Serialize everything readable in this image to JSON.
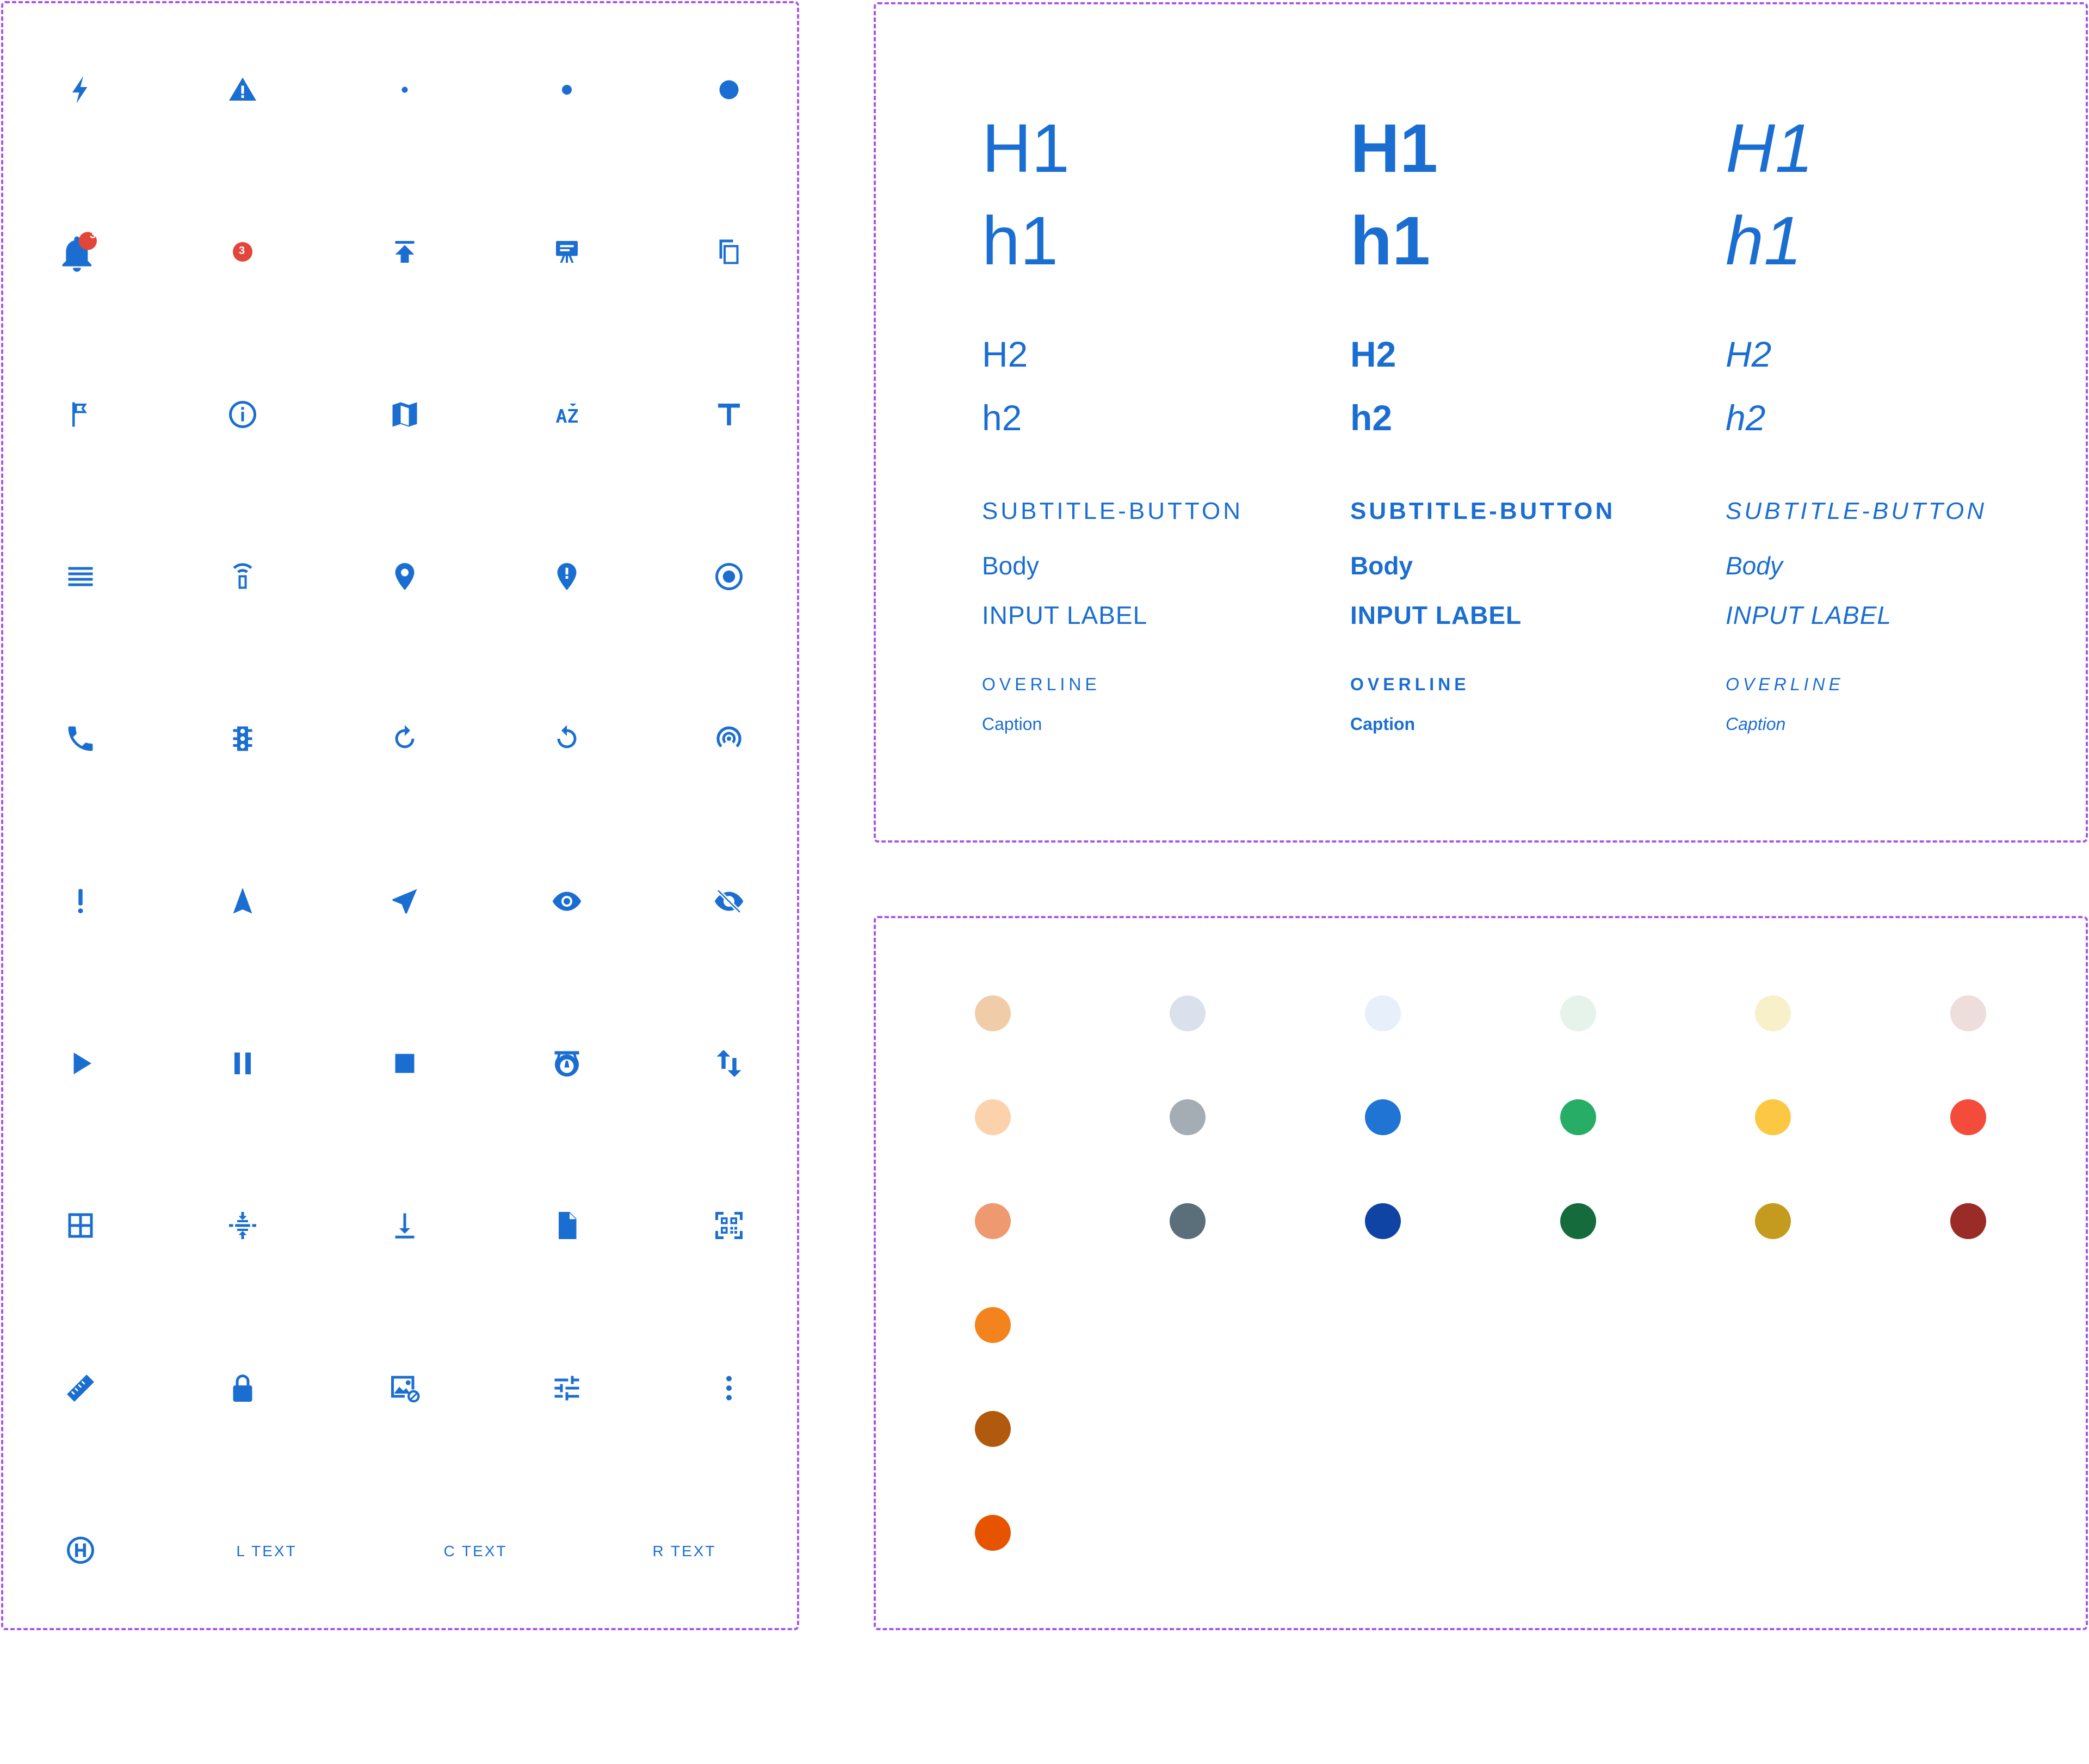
{
  "icons": [
    [
      "bolt",
      "warning",
      "dot-small",
      "dot-medium",
      "dot-large"
    ],
    [
      "bell-badge",
      "badge",
      "upload",
      "presentation",
      "copy"
    ],
    [
      "flag",
      "info",
      "map",
      "sort-az",
      "text"
    ],
    [
      "lines",
      "wifi-tower",
      "place",
      "place-alert",
      "radio-on"
    ],
    [
      "phone",
      "traffic",
      "rotate-cw",
      "rotate-ccw",
      "wifi-tethering"
    ],
    [
      "exclamation",
      "navigation",
      "near-me",
      "eye",
      "eye-off"
    ],
    [
      "play",
      "pause",
      "stop",
      "scale",
      "swap-vert"
    ],
    [
      "grid",
      "vertical-align-center",
      "vertical-align-bottom",
      "file",
      "qr-scan"
    ],
    [
      "ruler",
      "lock",
      "hide-image",
      "tune",
      "more-vert"
    ],
    [
      "helipad"
    ]
  ],
  "badge_count": "3",
  "text_labels": [
    "L TEXT",
    "C TEXT",
    "R TEXT"
  ],
  "typography": {
    "h1_upper": "H1",
    "h1_lower": "h1",
    "h2_upper": "H2",
    "h2_lower": "h2",
    "subtitle": "SUBTITLE-BUTTON",
    "body": "Body",
    "input_label": "INPUT LABEL",
    "overline": "OVERLINE",
    "caption": "Caption"
  },
  "palette": {
    "rows": [
      [
        "#f0cda8",
        "#dbe1ec",
        "#e6effa",
        "#e5f3ea",
        "#f8f0c9",
        "#eddddb"
      ],
      [
        "#fcd2ac",
        "#a4adb4",
        "#1f74d4",
        "#28ad66",
        "#fcc843",
        "#f44b3a"
      ],
      [
        "#ee9970",
        "#5a6f79",
        "#0f44a4",
        "#166b3c",
        "#c49b1e",
        "#9a2b27"
      ],
      [
        "#f3831d"
      ],
      [
        "#b1590d"
      ],
      [
        "#e75400"
      ]
    ]
  },
  "colors": {
    "accent": "#1b6ed1",
    "badge": "#e2463a",
    "frame": "#a757e8"
  }
}
